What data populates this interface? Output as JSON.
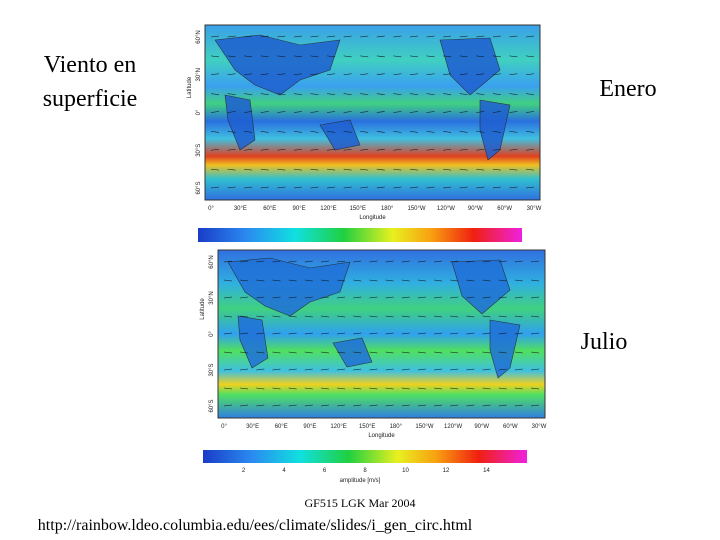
{
  "title": {
    "line1": "Viento en",
    "line2": "superficie"
  },
  "panels": [
    {
      "label": "Enero"
    },
    {
      "label": "Julio"
    }
  ],
  "map_axes": {
    "x_label": "Longitude",
    "y_label": "Latitude",
    "lat_ticks": [
      "60°N",
      "30°N",
      "0°",
      "30°S",
      "60°S"
    ],
    "lon_ticks": [
      "0°",
      "30°E",
      "60°E",
      "90°E",
      "120°E",
      "150°E",
      "180°",
      "150°W",
      "120°W",
      "90°W",
      "60°W",
      "30°W"
    ]
  },
  "colorbar": {
    "ticks": [
      "2",
      "4",
      "6",
      "8",
      "10",
      "12",
      "14"
    ],
    "label": "amplitude [m/s]"
  },
  "footer": {
    "course": "GF515 LGK Mar 2004",
    "url": "http://rainbow.ldeo.columbia.edu/ees/climate/slides/i_gen_circ.html"
  }
}
